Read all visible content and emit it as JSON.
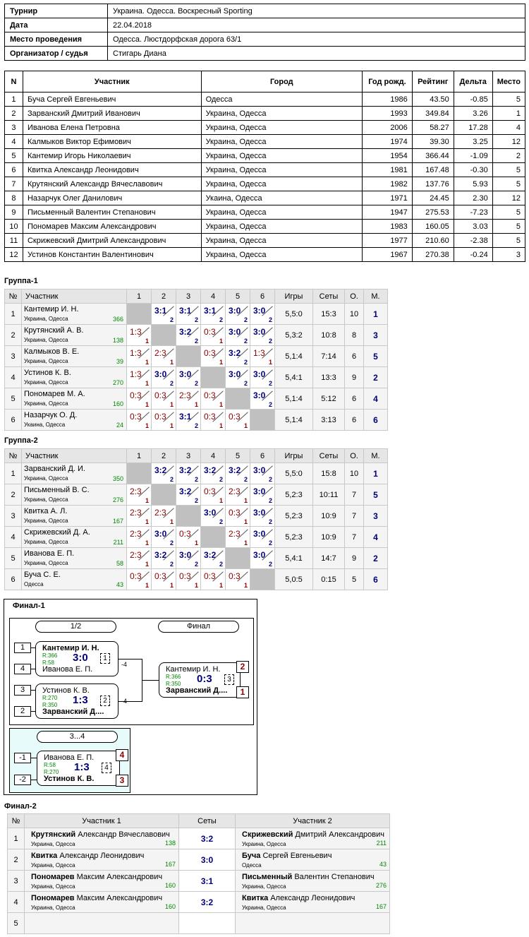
{
  "info": [
    {
      "k": "Турнир",
      "v": "Украина. Одесса. Воскресный Sporting"
    },
    {
      "k": "Дата",
      "v": "22.04.2018"
    },
    {
      "k": "Место проведения",
      "v": "Одесса. Люстдорфская дорога 63/1"
    },
    {
      "k": "Организатор / судья",
      "v": "Стигарь Диана"
    }
  ],
  "participants_header": [
    "N",
    "Участник",
    "Город",
    "Год рожд.",
    "Рейтинг",
    "Дельта",
    "Место"
  ],
  "participants": [
    [
      "1",
      "Буча Сергей Евгеньевич",
      "Одесса",
      "1986",
      "43.50",
      "-0.85",
      "5"
    ],
    [
      "2",
      "Зарванский Дмитрий Иванович",
      "Украина, Одесса",
      "1993",
      "349.84",
      "3.26",
      "1"
    ],
    [
      "3",
      "Иванова Елена Петровна",
      "Украина, Одесса",
      "2006",
      "58.27",
      "17.28",
      "4"
    ],
    [
      "4",
      "Калмыков Виктор Ефимович",
      "Украина, Одесса",
      "1974",
      "39.30",
      "3.25",
      "12"
    ],
    [
      "5",
      "Кантемир Игорь Николаевич",
      "Украина, Одесса",
      "1954",
      "366.44",
      "-1.09",
      "2"
    ],
    [
      "6",
      "Квитка Александр Леонидович",
      "Украина, Одесса",
      "1981",
      "167.48",
      "-0.30",
      "5"
    ],
    [
      "7",
      "Крутянский Александр Вячеславович",
      "Украина, Одесса",
      "1982",
      "137.76",
      "5.93",
      "5"
    ],
    [
      "8",
      "Назарчук Олег Данилович",
      "Укаина, Одесса",
      "1971",
      "24.45",
      "2.30",
      "12"
    ],
    [
      "9",
      "Письменный Валентин Степанович",
      "Украина, Одесса",
      "1947",
      "275.53",
      "-7.23",
      "5"
    ],
    [
      "10",
      "Пономарев Максим Александрович",
      "Украина, Одесса",
      "1983",
      "160.05",
      "3.03",
      "5"
    ],
    [
      "11",
      "Скрижевский Дмитрий Александрович",
      "Украина, Одесса",
      "1977",
      "210.60",
      "-2.38",
      "5"
    ],
    [
      "12",
      "Устинов Константин Валентинович",
      "Украина, Одесса",
      "1967",
      "270.38",
      "-0.24",
      "3"
    ]
  ],
  "group_header": [
    "№",
    "Участник",
    "1",
    "2",
    "3",
    "4",
    "5",
    "6",
    "Игры",
    "Сеты",
    "О.",
    "М."
  ],
  "groups": [
    {
      "title": "Группа-1",
      "rows": [
        {
          "n": "1",
          "name": "Кантемир И. Н.",
          "city": "Украина, Одесса",
          "rating": "366",
          "res": [
            "",
            "3:1|2",
            "3:1|2",
            "3:1|2",
            "3:0|2",
            "3:0|2"
          ],
          "games": "5,5:0",
          "sets": "15:3",
          "pts": "10",
          "place": "1"
        },
        {
          "n": "2",
          "name": "Крутянский А. В.",
          "city": "Украина, Одесса",
          "rating": "138",
          "res": [
            "1:3|1",
            "",
            "3:2|2",
            "0:3|1",
            "3:0|2",
            "3:0|2"
          ],
          "games": "5,3:2",
          "sets": "10:8",
          "pts": "8",
          "place": "3"
        },
        {
          "n": "3",
          "name": "Калмыков В. Е.",
          "city": "Украина, Одесса",
          "rating": "39",
          "res": [
            "1:3|1",
            "2:3|1",
            "",
            "0:3|1",
            "3:2|2",
            "1:3|1"
          ],
          "games": "5,1:4",
          "sets": "7:14",
          "pts": "6",
          "place": "5"
        },
        {
          "n": "4",
          "name": "Устинов К. В.",
          "city": "Украина, Одесса",
          "rating": "270",
          "res": [
            "1:3|1",
            "3:0|2",
            "3:0|2",
            "",
            "3:0|2",
            "3:0|2"
          ],
          "games": "5,4:1",
          "sets": "13:3",
          "pts": "9",
          "place": "2"
        },
        {
          "n": "5",
          "name": "Пономарев М. А.",
          "city": "Украина, Одесса",
          "rating": "160",
          "res": [
            "0:3|1",
            "0:3|1",
            "2:3|1",
            "0:3|1",
            "",
            "3:0|2"
          ],
          "games": "5,1:4",
          "sets": "5:12",
          "pts": "6",
          "place": "4"
        },
        {
          "n": "6",
          "name": "Назарчук О. Д.",
          "city": "Укаина, Одесса",
          "rating": "24",
          "res": [
            "0:3|1",
            "0:3|1",
            "3:1|2",
            "0:3|1",
            "0:3|1",
            ""
          ],
          "games": "5,1:4",
          "sets": "3:13",
          "pts": "6",
          "place": "6"
        }
      ]
    },
    {
      "title": "Группа-2",
      "rows": [
        {
          "n": "1",
          "name": "Зарванский Д. И.",
          "city": "Украина, Одесса",
          "rating": "350",
          "res": [
            "",
            "3:2|2",
            "3:2|2",
            "3:2|2",
            "3:2|2",
            "3:0|2"
          ],
          "games": "5,5:0",
          "sets": "15:8",
          "pts": "10",
          "place": "1"
        },
        {
          "n": "2",
          "name": "Письменный В. С.",
          "city": "Украина, Одесса",
          "rating": "276",
          "res": [
            "2:3|1",
            "",
            "3:2|2",
            "0:3|1",
            "2:3|1",
            "3:0|2"
          ],
          "games": "5,2:3",
          "sets": "10:11",
          "pts": "7",
          "place": "5"
        },
        {
          "n": "3",
          "name": "Квитка А. Л.",
          "city": "Украина, Одесса",
          "rating": "167",
          "res": [
            "2:3|1",
            "2:3|1",
            "",
            "3:0|2",
            "0:3|1",
            "3:0|2"
          ],
          "games": "5,2:3",
          "sets": "10:9",
          "pts": "7",
          "place": "3"
        },
        {
          "n": "4",
          "name": "Скрижевский Д. А.",
          "city": "Украина, Одесса",
          "rating": "211",
          "res": [
            "2:3|1",
            "3:0|2",
            "0:3|1",
            "",
            "2:3|1",
            "3:0|2"
          ],
          "games": "5,2:3",
          "sets": "10:9",
          "pts": "7",
          "place": "4"
        },
        {
          "n": "5",
          "name": "Иванова Е. П.",
          "city": "Украина, Одесса",
          "rating": "58",
          "res": [
            "2:3|1",
            "3:2|2",
            "3:0|2",
            "3:2|2",
            "",
            "3:0|2"
          ],
          "games": "5,4:1",
          "sets": "14:7",
          "pts": "9",
          "place": "2"
        },
        {
          "n": "6",
          "name": "Буча С. Е.",
          "city": "Одесса",
          "rating": "43",
          "res": [
            "0:3|1",
            "0:3|1",
            "0:3|1",
            "0:3|1",
            "0:3|1",
            ""
          ],
          "games": "5,0:5",
          "sets": "0:15",
          "pts": "5",
          "place": "6"
        }
      ]
    }
  ],
  "final1": {
    "title": "Финал-1",
    "round1": "1/2",
    "round2": "Финал",
    "round3": "3...4",
    "m1": {
      "seed_a": "1",
      "seed_b": "4",
      "a": "Кантемир И. Н.",
      "b": "Иванова Е. П.",
      "ra": "R:366",
      "rb": "R:58",
      "score": "3:0",
      "num": "1",
      "out": "-4"
    },
    "m2": {
      "seed_a": "3",
      "seed_b": "2",
      "a": "Устинов К. В.",
      "b": "Зарванский Д....",
      "ra": "R:270",
      "rb": "R:350",
      "score": "1:3",
      "num": "2",
      "out": "-4"
    },
    "m3": {
      "a": "Кантемир И. Н.",
      "b": "Зарванский Д....",
      "ra": "R:366",
      "rb": "R:350",
      "score": "0:3",
      "num": "3",
      "pa": "2",
      "pb": "1"
    },
    "m4": {
      "seed_a": "-1",
      "seed_b": "-2",
      "a": "Иванова Е. П.",
      "b": "Устинов К. В.",
      "ra": "R:58",
      "rb": "R:270",
      "score": "1:3",
      "num": "4",
      "pa": "4",
      "pb": "3"
    }
  },
  "final2": {
    "title": "Финал-2",
    "header": [
      "№",
      "Участник 1",
      "Сеты",
      "Участник 2"
    ],
    "rows": [
      {
        "n": "1",
        "p1s": "Крутянский",
        "p1r": "Александр Вячеславович",
        "c1": "Украина, Одесса",
        "r1": "138",
        "score": "3:2",
        "p2s": "Скрижевский",
        "p2r": "Дмитрий Александрович",
        "c2": "Украина, Одесса",
        "r2": "211"
      },
      {
        "n": "2",
        "p1s": "Квитка",
        "p1r": "Александр Леонидович",
        "c1": "Украина, Одесса",
        "r1": "167",
        "score": "3:0",
        "p2s": "Буча",
        "p2r": "Сергей Евгеньевич",
        "c2": "Одесса",
        "r2": "43"
      },
      {
        "n": "3",
        "p1s": "Пономарев",
        "p1r": "Максим Александрович",
        "c1": "Украина, Одесса",
        "r1": "160",
        "score": "3:1",
        "p2s": "Письменный",
        "p2r": "Валентин Степанович",
        "c2": "Украина, Одесса",
        "r2": "276"
      },
      {
        "n": "4",
        "p1s": "Пономарев",
        "p1r": "Максим Александрович",
        "c1": "Украина, Одесса",
        "r1": "160",
        "score": "3:2",
        "p2s": "Квитка",
        "p2r": "Александр Леонидович",
        "c2": "Украина, Одесса",
        "r2": "167"
      },
      {
        "n": "5",
        "p1s": "",
        "p1r": "",
        "c1": "",
        "r1": "",
        "score": "",
        "p2s": "",
        "p2r": "",
        "c2": "",
        "r2": ""
      }
    ]
  }
}
